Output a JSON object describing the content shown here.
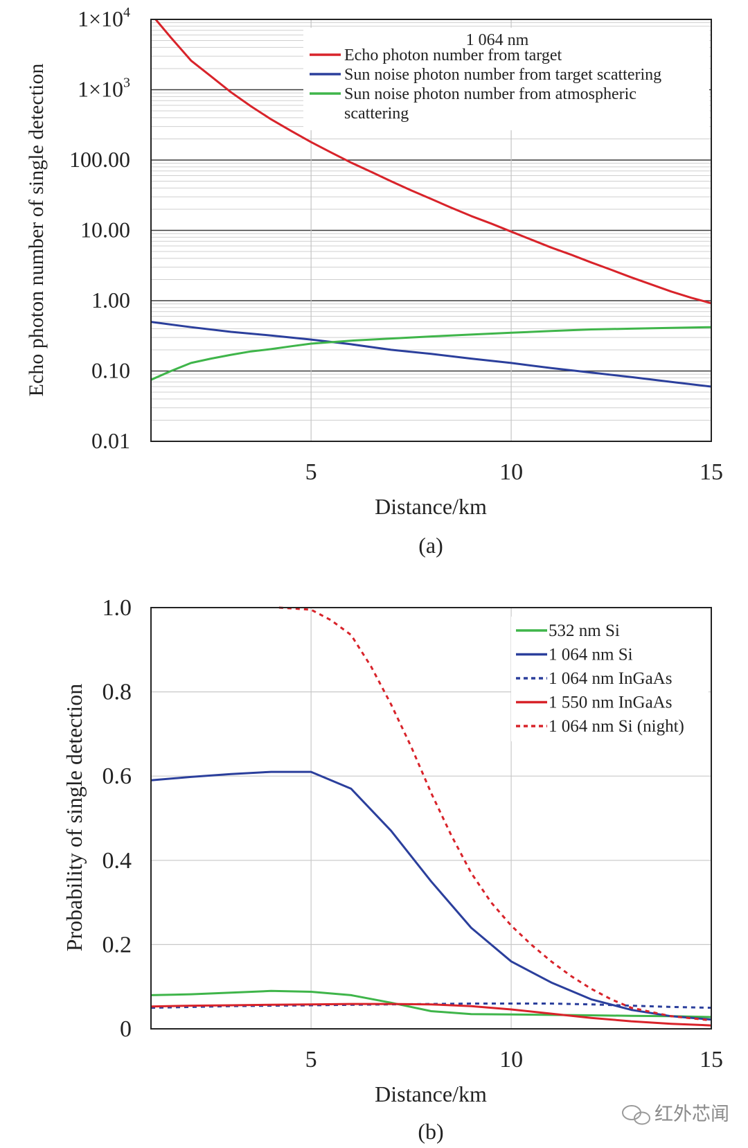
{
  "chart_data": [
    {
      "type": "line",
      "panel_label": "(a)",
      "xlabel": "Distance/km",
      "ylabel": "Echo photon number of single detection",
      "yscale": "log",
      "xlim": [
        1,
        15
      ],
      "ylim": [
        0.01,
        10000
      ],
      "xticks": [
        5,
        10,
        15
      ],
      "xtick_labels": [
        "5",
        "10",
        "15"
      ],
      "yticks": [
        0.01,
        0.1,
        1,
        10,
        100,
        1000,
        10000
      ],
      "ytick_labels": [
        "0.01",
        "0.10",
        "1.00",
        "10.00",
        "100.00",
        "1×10",
        "1×10"
      ],
      "ytick_exponents": [
        "",
        "",
        "",
        "",
        "",
        "3",
        "4"
      ],
      "legend_title": "1 064 nm",
      "series": [
        {
          "name": "Echo photon number from target",
          "color": "#d8232a",
          "x": [
            1,
            1.5,
            2,
            2.5,
            3,
            3.5,
            4,
            4.5,
            5,
            5.5,
            6,
            6.5,
            7,
            7.5,
            8,
            8.5,
            9,
            9.5,
            10,
            10.5,
            11,
            11.5,
            12,
            12.5,
            13,
            13.5,
            14,
            14.5,
            15
          ],
          "y": [
            12000,
            5500,
            2600,
            1550,
            920,
            580,
            380,
            260,
            180,
            128,
            92,
            68,
            50,
            37,
            28,
            21,
            16,
            12.5,
            9.6,
            7.4,
            5.7,
            4.5,
            3.5,
            2.75,
            2.15,
            1.7,
            1.35,
            1.1,
            0.92
          ]
        },
        {
          "name": "Sun noise photon number from target scattering",
          "color": "#2b3f9c",
          "x": [
            1,
            2,
            3,
            4,
            5,
            6,
            7,
            8,
            9,
            10,
            11,
            12,
            13,
            14,
            15
          ],
          "y": [
            0.5,
            0.42,
            0.36,
            0.32,
            0.28,
            0.24,
            0.2,
            0.175,
            0.15,
            0.13,
            0.11,
            0.095,
            0.082,
            0.07,
            0.06
          ]
        },
        {
          "name": "Sun noise photon number from atmospheric scattering",
          "color": "#3fb54a",
          "x": [
            1,
            1.5,
            2,
            2.5,
            3,
            3.5,
            4,
            4.5,
            5,
            6,
            7,
            8,
            9,
            10,
            11,
            12,
            13,
            14,
            15
          ],
          "y": [
            0.075,
            0.1,
            0.13,
            0.15,
            0.17,
            0.19,
            0.205,
            0.225,
            0.245,
            0.27,
            0.29,
            0.31,
            0.33,
            0.35,
            0.37,
            0.39,
            0.4,
            0.41,
            0.42
          ]
        }
      ]
    },
    {
      "type": "line",
      "panel_label": "(b)",
      "xlabel": "Distance/km",
      "ylabel": "Probability of single detection",
      "xlim": [
        1,
        15
      ],
      "ylim": [
        0,
        1.0
      ],
      "xticks": [
        5,
        10,
        15
      ],
      "xtick_labels": [
        "5",
        "10",
        "15"
      ],
      "yticks": [
        0,
        0.2,
        0.4,
        0.6,
        0.8,
        1.0
      ],
      "ytick_labels": [
        "0",
        "0.2",
        "0.4",
        "0.6",
        "0.8",
        "1.0"
      ],
      "series": [
        {
          "name": "532 nm Si",
          "color": "#3fb54a",
          "dash": false,
          "x": [
            1,
            2,
            3,
            4,
            5,
            6,
            7,
            8,
            9,
            10,
            11,
            12,
            13,
            14,
            15
          ],
          "y": [
            0.08,
            0.082,
            0.086,
            0.09,
            0.088,
            0.08,
            0.062,
            0.042,
            0.035,
            0.034,
            0.033,
            0.032,
            0.031,
            0.03,
            0.028
          ]
        },
        {
          "name": "1 064 nm Si",
          "color": "#2b3f9c",
          "dash": false,
          "x": [
            1,
            2,
            3,
            4,
            5,
            6,
            7,
            8,
            9,
            10,
            11,
            12,
            13,
            14,
            15
          ],
          "y": [
            0.59,
            0.598,
            0.605,
            0.61,
            0.61,
            0.57,
            0.47,
            0.35,
            0.24,
            0.16,
            0.11,
            0.07,
            0.045,
            0.03,
            0.022
          ]
        },
        {
          "name": "1 064 nm InGaAs",
          "color": "#2b3f9c",
          "dash": true,
          "x": [
            1,
            2,
            3,
            4,
            5,
            6,
            7,
            8,
            9,
            10,
            11,
            12,
            13,
            14,
            15
          ],
          "y": [
            0.05,
            0.052,
            0.054,
            0.055,
            0.056,
            0.057,
            0.058,
            0.059,
            0.06,
            0.06,
            0.06,
            0.058,
            0.055,
            0.052,
            0.05
          ]
        },
        {
          "name": "1 550 nm InGaAs",
          "color": "#d8232a",
          "dash": false,
          "x": [
            1,
            2,
            3,
            4,
            5,
            6,
            7,
            8,
            9,
            10,
            11,
            12,
            13,
            14,
            15
          ],
          "y": [
            0.053,
            0.055,
            0.056,
            0.057,
            0.058,
            0.059,
            0.059,
            0.058,
            0.054,
            0.046,
            0.036,
            0.026,
            0.018,
            0.012,
            0.008
          ]
        },
        {
          "name": "1 064 nm Si (night)",
          "color": "#d8232a",
          "dash": true,
          "x": [
            4.2,
            5,
            5.5,
            6,
            6.5,
            7,
            7.5,
            8,
            8.5,
            9,
            9.5,
            10,
            10.5,
            11,
            11.5,
            12,
            12.5,
            13,
            13.5,
            14,
            14.5,
            15
          ],
          "y": [
            1.0,
            0.995,
            0.97,
            0.935,
            0.86,
            0.77,
            0.67,
            0.56,
            0.46,
            0.37,
            0.3,
            0.245,
            0.2,
            0.16,
            0.125,
            0.095,
            0.07,
            0.05,
            0.04,
            0.03,
            0.025,
            0.02
          ]
        }
      ]
    }
  ],
  "watermark": "红外芯闻"
}
